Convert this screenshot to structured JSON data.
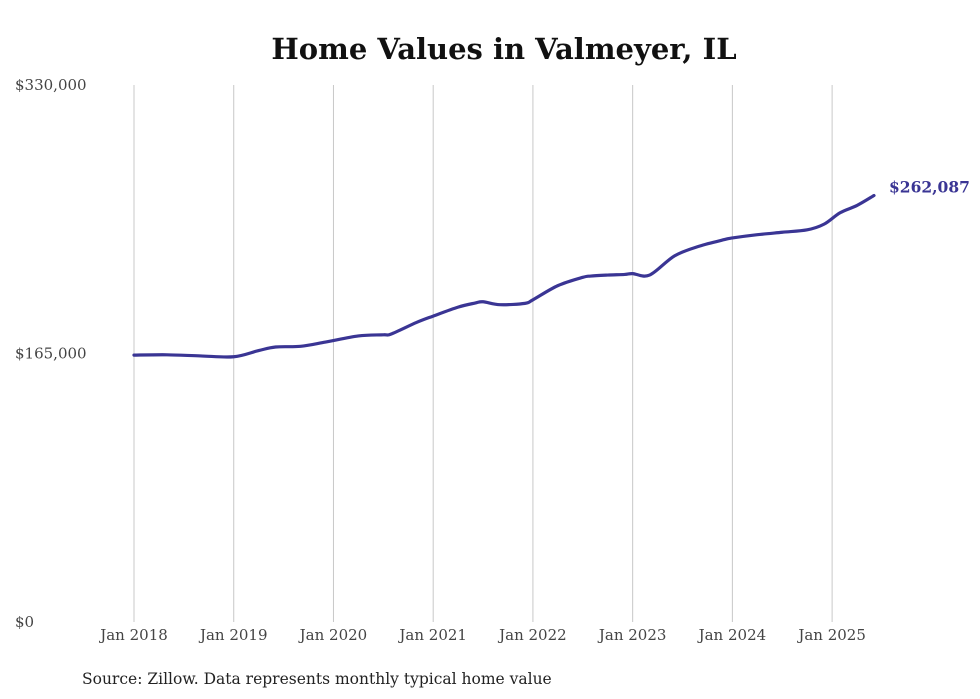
{
  "colors": {
    "line": "#3a3594",
    "grid": "#c8c8c8",
    "text": "#444444"
  },
  "source": "Source: Zillow. Data represents monthly typical home value",
  "chart_data": {
    "type": "line",
    "title": "Home Values in Valmeyer, IL",
    "xlabel": "",
    "ylabel": "",
    "ylim": [
      0,
      330000
    ],
    "xlim": [
      2018.0,
      2025.42
    ],
    "y_ticks": [
      {
        "value": 0,
        "label": "$0"
      },
      {
        "value": 165000,
        "label": "$165,000"
      },
      {
        "value": 330000,
        "label": "$330,000"
      }
    ],
    "x_ticks": [
      {
        "value": 2018,
        "label": "Jan 2018"
      },
      {
        "value": 2019,
        "label": "Jan 2019"
      },
      {
        "value": 2020,
        "label": "Jan 2020"
      },
      {
        "value": 2021,
        "label": "Jan 2021"
      },
      {
        "value": 2022,
        "label": "Jan 2022"
      },
      {
        "value": 2023,
        "label": "Jan 2023"
      },
      {
        "value": 2024,
        "label": "Jan 2024"
      },
      {
        "value": 2025,
        "label": "Jan 2025"
      }
    ],
    "end_label": "$262,087",
    "series": [
      {
        "name": "Typical home value",
        "x": [
          2018.0,
          2018.33,
          2018.67,
          2019.0,
          2019.25,
          2019.42,
          2019.67,
          2019.92,
          2020.25,
          2020.5,
          2020.58,
          2020.83,
          2021.0,
          2021.25,
          2021.42,
          2021.5,
          2021.67,
          2021.92,
          2022.0,
          2022.25,
          2022.5,
          2022.58,
          2022.75,
          2022.92,
          2023.0,
          2023.17,
          2023.42,
          2023.67,
          2023.92,
          2024.0,
          2024.25,
          2024.5,
          2024.75,
          2024.92,
          2025.08,
          2025.25,
          2025.42
        ],
        "values": [
          164000,
          164200,
          163500,
          163000,
          166800,
          169000,
          169400,
          172000,
          175800,
          176500,
          177000,
          184000,
          188000,
          193500,
          196000,
          196800,
          195000,
          195800,
          198000,
          206700,
          211800,
          212600,
          213200,
          213600,
          214100,
          213200,
          225000,
          231000,
          235000,
          236000,
          238000,
          239500,
          241000,
          244500,
          251500,
          256000,
          262087
        ]
      }
    ]
  }
}
